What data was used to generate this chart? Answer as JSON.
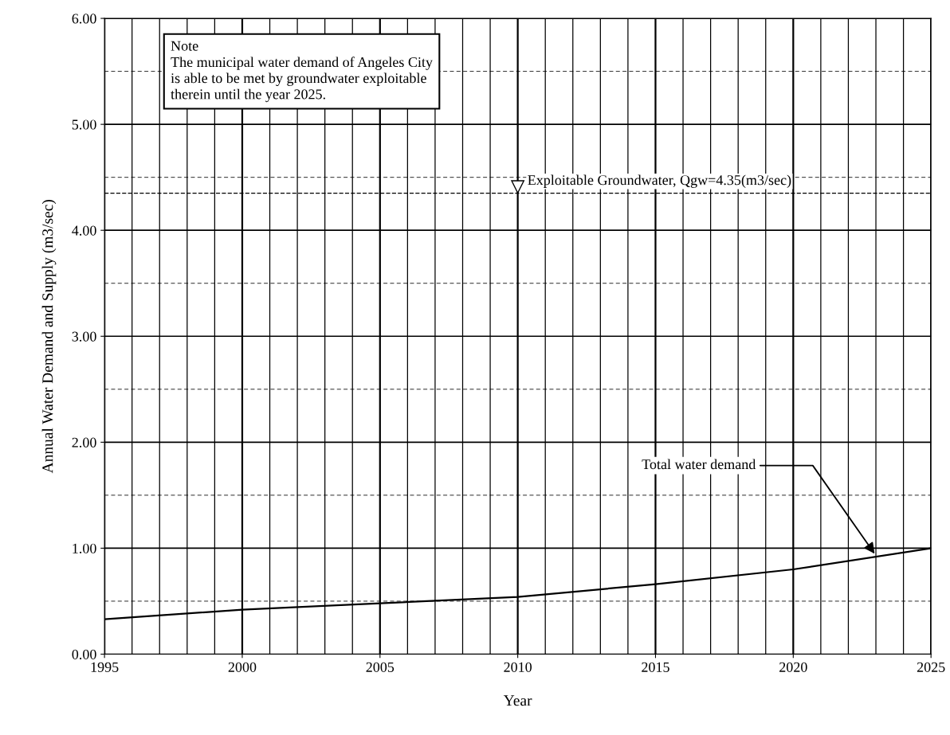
{
  "chart_data": {
    "type": "line",
    "xlabel": "Year",
    "ylabel": "Annual Water Demand and Supply (m3/sec)",
    "x": [
      1995,
      2000,
      2005,
      2010,
      2015,
      2020,
      2025
    ],
    "series": [
      {
        "color": "#000000",
        "values": [
          0.33,
          0.42,
          0.48,
          0.54,
          0.66,
          0.8,
          1.0
        ]
      }
    ],
    "xlim": [
      1995,
      2025
    ],
    "xticks": [
      1995,
      2000,
      2005,
      2010,
      2015,
      2020,
      2025
    ],
    "ylim": [
      0,
      6
    ],
    "yticks": [
      {
        "value": 0,
        "label": "0.00"
      },
      {
        "value": 1,
        "label": "1.00"
      },
      {
        "value": 2,
        "label": "2.00"
      },
      {
        "value": 3,
        "label": "3.00"
      },
      {
        "value": 4,
        "label": "4.00"
      },
      {
        "value": 5,
        "label": "5.00"
      },
      {
        "value": 6,
        "label": "6.00"
      }
    ],
    "ref_lines": [
      {
        "axis": "y",
        "value": 4.35,
        "label": "Exploitable Groundwater, Qgw=4.35(m3/sec)",
        "color": "#000000",
        "line_style": "dashed"
      }
    ],
    "annotations": [
      "Note\nThe municipal water demand of Angeles City\nis able to be met by groundwater exploitable\ntherein until the year 2025.",
      {
        "text": "Total water demand",
        "x": 2023,
        "y": 0.93
      }
    ],
    "grid": true,
    "marker": "none",
    "line_style": "solid"
  }
}
